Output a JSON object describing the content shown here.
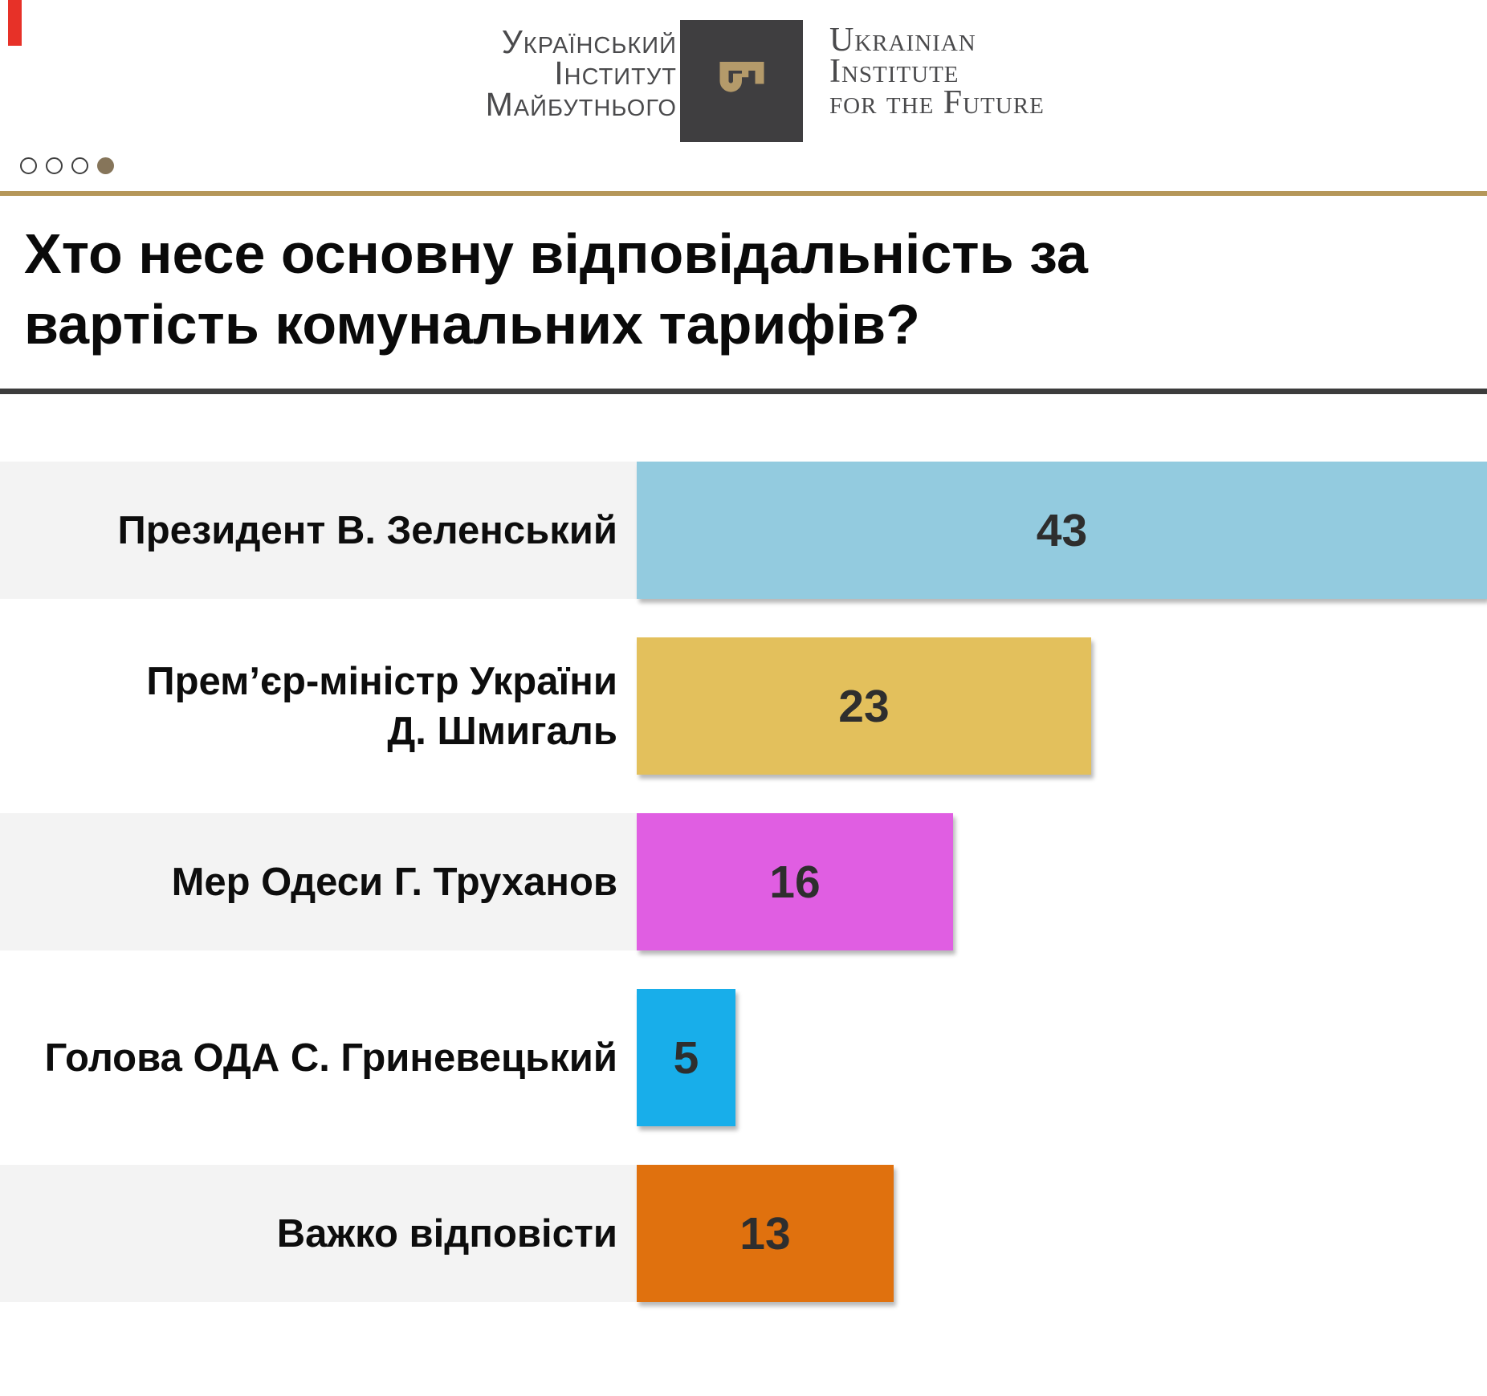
{
  "decor": {
    "red_marker_color": "#e73128",
    "gold_rule_color": "#b59759",
    "dark_rule_color": "#3c3c3c"
  },
  "header": {
    "logo_uk": {
      "line1": "Український",
      "line2": "Інститут",
      "line3": "Майбутнього"
    },
    "logo_en": {
      "line1": "Ukrainian",
      "line2": "Institute",
      "line3": "for the Future"
    },
    "square_color": "#3f3e40",
    "key_color": "#b49a6a",
    "text_color": "#4a4a4c"
  },
  "pagination": {
    "dots": [
      {
        "filled": false
      },
      {
        "filled": false
      },
      {
        "filled": false
      },
      {
        "filled": true
      }
    ],
    "filled_color": "#86755a"
  },
  "title": {
    "line1": "Хто несе основну відповідальність за",
    "line2": "вартість комунальних тарифів?"
  },
  "chart_data": {
    "type": "bar",
    "orientation": "horizontal",
    "title": "Хто несе основну відповідальність за вартість комунальних тарифів?",
    "categories": [
      "Президент В. Зеленський",
      "Прем’єр-міністр України Д. Шмигаль",
      "Мер Одеси Г. Труханов",
      "Голова ОДА С. Гриневецький",
      "Важко відповісти"
    ],
    "values": [
      43,
      23,
      16,
      5,
      13
    ],
    "bar_colors": [
      "#93cbdf",
      "#e3c05c",
      "#e05ee2",
      "#18aeea",
      "#e0710e"
    ],
    "xlim": [
      0,
      43
    ],
    "grid": false,
    "legend": false,
    "value_labels": "inside-center",
    "rows": [
      {
        "label_lines": [
          "Президент В. Зеленський"
        ],
        "value": 43,
        "color": "#93cbdf",
        "striped": true
      },
      {
        "label_lines": [
          "Прем’єр-міністр України",
          "Д. Шмигаль"
        ],
        "value": 23,
        "color": "#e3c05c",
        "striped": false
      },
      {
        "label_lines": [
          "Мер Одеси Г. Труханов"
        ],
        "value": 16,
        "color": "#e05ee2",
        "striped": true
      },
      {
        "label_lines": [
          "Голова ОДА С. Гриневецький"
        ],
        "value": 5,
        "color": "#18aeea",
        "striped": false
      },
      {
        "label_lines": [
          "Важко відповісти"
        ],
        "value": 13,
        "color": "#e0710e",
        "striped": true
      }
    ]
  }
}
